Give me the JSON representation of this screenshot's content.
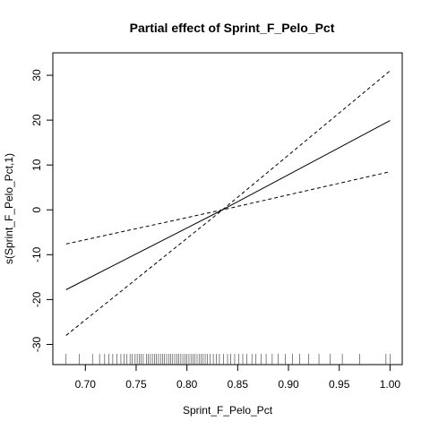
{
  "chart_data": {
    "type": "line",
    "title": "Partial effect of Sprint_F_Pelo_Pct",
    "xlabel": "Sprint_F_Pelo_Pct",
    "ylabel": "s(Sprint_F_Pelo_Pct,1)",
    "xlim": [
      0.668,
      1.012
    ],
    "ylim": [
      -34.5,
      35
    ],
    "x_ticks": [
      "0.70",
      "0.75",
      "0.80",
      "0.85",
      "0.90",
      "0.95",
      "1.00"
    ],
    "x_tick_values": [
      0.7,
      0.75,
      0.8,
      0.85,
      0.9,
      0.95,
      1.0
    ],
    "y_ticks": [
      "-30",
      "-20",
      "-10",
      "0",
      "10",
      "20",
      "30"
    ],
    "y_tick_values": [
      -30,
      -20,
      -10,
      0,
      10,
      20,
      30
    ],
    "grid": false,
    "series": [
      {
        "line_style": "solid",
        "x": [
          0.681,
          0.835,
          1.0
        ],
        "y": [
          -17.8,
          0,
          19.9
        ]
      },
      {
        "line_style": "dashed",
        "x": [
          0.681,
          0.835,
          1.0
        ],
        "y": [
          -28.0,
          0,
          31.0
        ]
      },
      {
        "line_style": "dashed",
        "x": [
          0.681,
          0.835,
          1.0
        ],
        "y": [
          -7.6,
          0,
          8.5
        ]
      }
    ],
    "rug": [
      0.681,
      0.694,
      0.707,
      0.714,
      0.719,
      0.723,
      0.727,
      0.731,
      0.735,
      0.738,
      0.741,
      0.744,
      0.746,
      0.749,
      0.751,
      0.753,
      0.755,
      0.757,
      0.76,
      0.762,
      0.764,
      0.766,
      0.768,
      0.77,
      0.772,
      0.774,
      0.776,
      0.778,
      0.78,
      0.782,
      0.784,
      0.786,
      0.788,
      0.79,
      0.792,
      0.794,
      0.796,
      0.798,
      0.8,
      0.802,
      0.804,
      0.806,
      0.808,
      0.81,
      0.812,
      0.814,
      0.816,
      0.818,
      0.82,
      0.823,
      0.826,
      0.829,
      0.832,
      0.836,
      0.84,
      0.843,
      0.847,
      0.851,
      0.855,
      0.859,
      0.864,
      0.868,
      0.873,
      0.878,
      0.884,
      0.89,
      0.897,
      0.904,
      0.911,
      0.92,
      0.93,
      0.941,
      0.953,
      0.97,
      0.996,
      1.0
    ]
  }
}
